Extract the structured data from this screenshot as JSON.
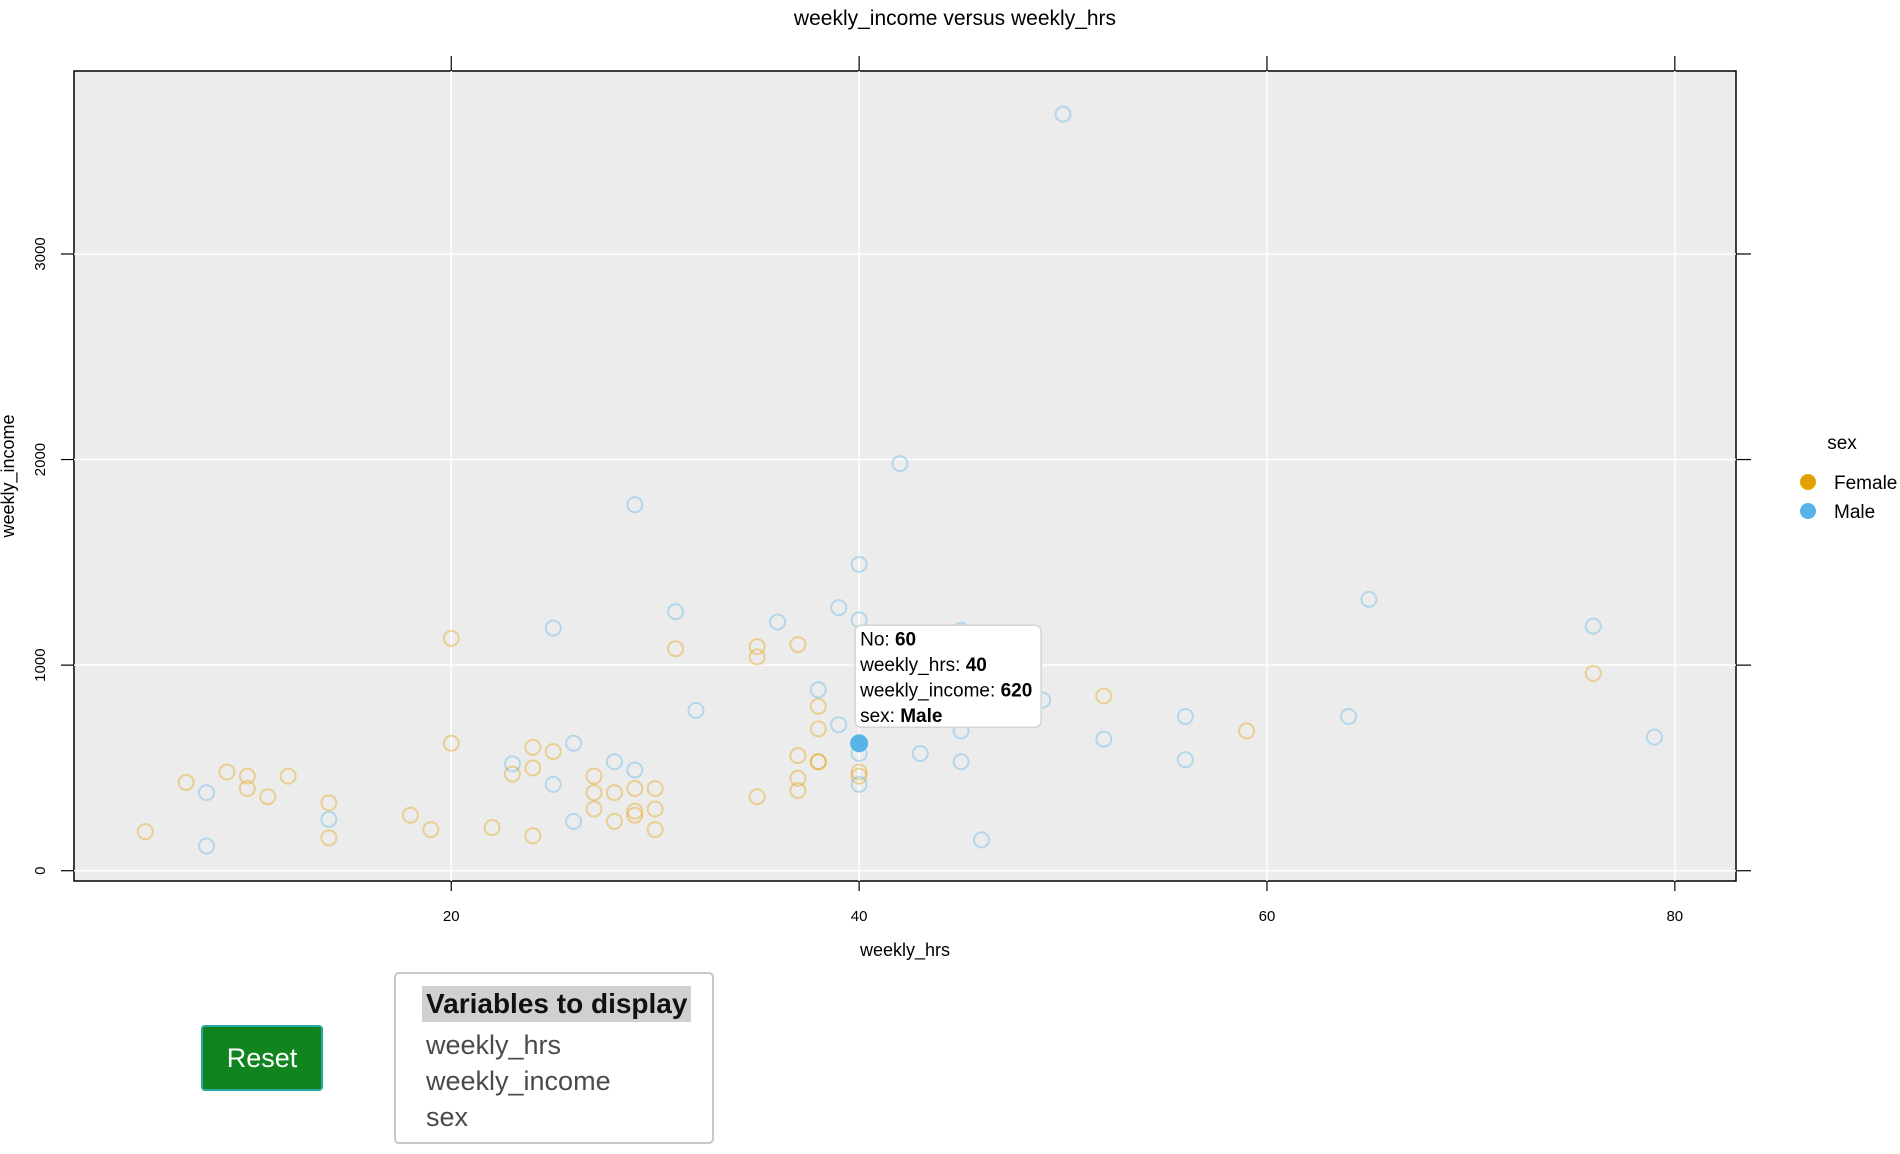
{
  "chart_data": {
    "type": "scatter",
    "title": "weekly_income versus weekly_hrs",
    "xlabel": "weekly_hrs",
    "ylabel": "weekly_income",
    "xlim": [
      1.5,
      83
    ],
    "ylim": [
      -50,
      3890
    ],
    "xticks": [
      20,
      40,
      60,
      80
    ],
    "yticks": [
      0,
      1000,
      2000,
      3000
    ],
    "grid": true,
    "legend": {
      "title": "sex",
      "position": "right"
    },
    "colors": {
      "Female": "#E69F00",
      "Male": "#56B4E9"
    },
    "series": [
      {
        "name": "Female",
        "points": [
          [
            5,
            190
          ],
          [
            7,
            430
          ],
          [
            9,
            480
          ],
          [
            10,
            460
          ],
          [
            10,
            400
          ],
          [
            11,
            360
          ],
          [
            12,
            460
          ],
          [
            14,
            330
          ],
          [
            14,
            160
          ],
          [
            18,
            270
          ],
          [
            19,
            200
          ],
          [
            20,
            1130
          ],
          [
            20,
            620
          ],
          [
            22,
            210
          ],
          [
            23,
            470
          ],
          [
            24,
            600
          ],
          [
            24,
            500
          ],
          [
            24,
            170
          ],
          [
            25,
            580
          ],
          [
            27,
            460
          ],
          [
            27,
            380
          ],
          [
            27,
            300
          ],
          [
            28,
            380
          ],
          [
            28,
            240
          ],
          [
            29,
            400
          ],
          [
            29,
            290
          ],
          [
            29,
            270
          ],
          [
            30,
            400
          ],
          [
            30,
            300
          ],
          [
            30,
            200
          ],
          [
            31,
            1080
          ],
          [
            35,
            1090
          ],
          [
            35,
            1040
          ],
          [
            35,
            360
          ],
          [
            37,
            1100
          ],
          [
            37,
            560
          ],
          [
            37,
            450
          ],
          [
            37,
            390
          ],
          [
            38,
            800
          ],
          [
            38,
            690
          ],
          [
            38,
            530
          ],
          [
            38,
            530
          ],
          [
            40,
            480
          ],
          [
            40,
            460
          ],
          [
            52,
            850
          ],
          [
            59,
            680
          ],
          [
            76,
            960
          ]
        ]
      },
      {
        "name": "Male",
        "points": [
          [
            8,
            380
          ],
          [
            8,
            120
          ],
          [
            14,
            250
          ],
          [
            23,
            520
          ],
          [
            25,
            1180
          ],
          [
            25,
            420
          ],
          [
            26,
            620
          ],
          [
            26,
            240
          ],
          [
            28,
            530
          ],
          [
            29,
            1780
          ],
          [
            29,
            490
          ],
          [
            31,
            1260
          ],
          [
            32,
            780
          ],
          [
            36,
            1210
          ],
          [
            38,
            880
          ],
          [
            39,
            1280
          ],
          [
            39,
            710
          ],
          [
            40,
            1490
          ],
          [
            40,
            1220
          ],
          [
            40,
            620
          ],
          [
            40,
            570
          ],
          [
            40,
            420
          ],
          [
            42,
            1980
          ],
          [
            43,
            570
          ],
          [
            45,
            1170
          ],
          [
            45,
            750
          ],
          [
            45,
            680
          ],
          [
            45,
            530
          ],
          [
            46,
            150
          ],
          [
            49,
            830
          ],
          [
            50,
            3680
          ],
          [
            52,
            640
          ],
          [
            56,
            750
          ],
          [
            56,
            540
          ],
          [
            64,
            750
          ],
          [
            65,
            1320
          ],
          [
            76,
            1190
          ],
          [
            79,
            650
          ]
        ]
      }
    ],
    "highlight": {
      "x": 40,
      "y": 620,
      "series": "Male"
    },
    "tooltip": [
      {
        "label": "No: ",
        "value": "60"
      },
      {
        "label": "weekly_hrs: ",
        "value": "40"
      },
      {
        "label": "weekly_income: ",
        "value": "620"
      },
      {
        "label": "sex: ",
        "value": "Male"
      }
    ]
  },
  "controls": {
    "reset_label": "Reset",
    "variables_title": "Variables to display",
    "variables": [
      "weekly_hrs",
      "weekly_income",
      "sex"
    ]
  }
}
